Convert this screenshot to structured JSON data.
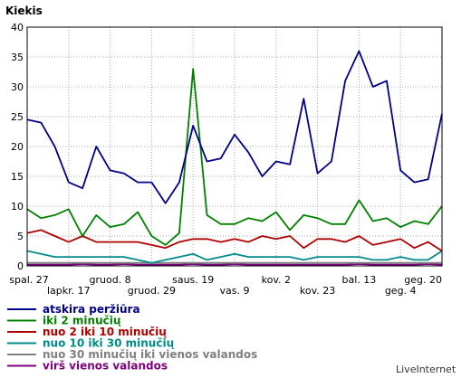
{
  "chart_data": {
    "type": "line",
    "ylabel": "Kiekis",
    "ylim": [
      0,
      40
    ],
    "yticks": [
      0,
      5,
      10,
      15,
      20,
      25,
      30,
      35,
      40
    ],
    "grid": true,
    "x_labels": [
      {
        "i": 0,
        "label": "spal. 27",
        "row": 1
      },
      {
        "i": 3,
        "label": "lapkr. 17",
        "row": 2
      },
      {
        "i": 6,
        "label": "gruod. 8",
        "row": 1
      },
      {
        "i": 9,
        "label": "gruod. 29",
        "row": 2
      },
      {
        "i": 12,
        "label": "saus. 19",
        "row": 1
      },
      {
        "i": 15,
        "label": "vas. 9",
        "row": 2
      },
      {
        "i": 18,
        "label": "kov. 2",
        "row": 1
      },
      {
        "i": 21,
        "label": "kov. 23",
        "row": 2
      },
      {
        "i": 24,
        "label": "bal. 13",
        "row": 1
      },
      {
        "i": 27,
        "label": "geg. 4",
        "row": 2
      },
      {
        "i": 30,
        "label": "geg. 20",
        "row": 1
      }
    ],
    "series": [
      {
        "name": "atskira peržiūra",
        "color": "#00008b",
        "values": [
          24.5,
          24,
          20,
          14,
          13,
          20,
          16,
          15.5,
          14,
          14,
          10.5,
          14,
          23.5,
          17.5,
          18,
          22,
          19,
          15,
          17.5,
          17,
          28,
          15.5,
          17.5,
          31,
          36,
          30,
          31,
          16,
          14,
          14.5,
          25.5
        ]
      },
      {
        "name": "iki 2 minučių",
        "color": "#008000",
        "values": [
          9.5,
          8,
          8.5,
          9.5,
          5,
          8.5,
          6.5,
          7,
          9,
          5,
          3.5,
          5.5,
          33,
          8.5,
          7,
          7,
          8,
          7.5,
          9,
          6,
          8.5,
          8,
          7,
          7,
          11,
          7.5,
          8,
          6.5,
          7.5,
          7,
          10
        ]
      },
      {
        "name": "nuo 2 iki 10 minučių",
        "color": "#b00000",
        "values": [
          5.5,
          6,
          5,
          4,
          5,
          4,
          4,
          4,
          4,
          3.5,
          3,
          4,
          4.5,
          4.5,
          4,
          4.5,
          4,
          5,
          4.5,
          5,
          3,
          4.5,
          4.5,
          4,
          5,
          3.5,
          4,
          4.5,
          3,
          4,
          2.5
        ]
      },
      {
        "name": "nuo 10 iki 30 minučių",
        "color": "#008b8b",
        "values": [
          2.5,
          2,
          1.5,
          1.5,
          1.5,
          1.5,
          1.5,
          1.5,
          1,
          0.5,
          1,
          1.5,
          2,
          1,
          1.5,
          2,
          1.5,
          1.5,
          1.5,
          1.5,
          1,
          1.5,
          1.5,
          1.5,
          1.5,
          1,
          1,
          1.5,
          1,
          1,
          2.5
        ]
      },
      {
        "name": "nuo 30 minučių iki vienos valandos",
        "color": "#808080",
        "values": [
          0.5,
          0.5,
          0.5,
          0.5,
          0.5,
          0.5,
          0.5,
          0.5,
          0.5,
          0.5,
          0.5,
          0.5,
          0.5,
          0.5,
          0.5,
          0.5,
          0.5,
          0.5,
          0.5,
          0.5,
          0.5,
          0.5,
          0.5,
          0.5,
          0.5,
          0.5,
          0.5,
          0.5,
          0.5,
          0.5,
          0.5
        ]
      },
      {
        "name": "virš vienos valandos",
        "color": "#800080",
        "values": [
          0.2,
          0.2,
          0.2,
          0.2,
          0.3,
          0.2,
          0.2,
          0.3,
          0.2,
          0.2,
          0.2,
          0.2,
          0.3,
          0.2,
          0.2,
          0.3,
          0.2,
          0.2,
          0.2,
          0.2,
          0.2,
          0.2,
          0.2,
          0.2,
          0.3,
          0.2,
          0.2,
          0.2,
          0.2,
          0.3,
          0.2
        ]
      }
    ]
  },
  "footer": {
    "credit": "LiveInternet"
  }
}
